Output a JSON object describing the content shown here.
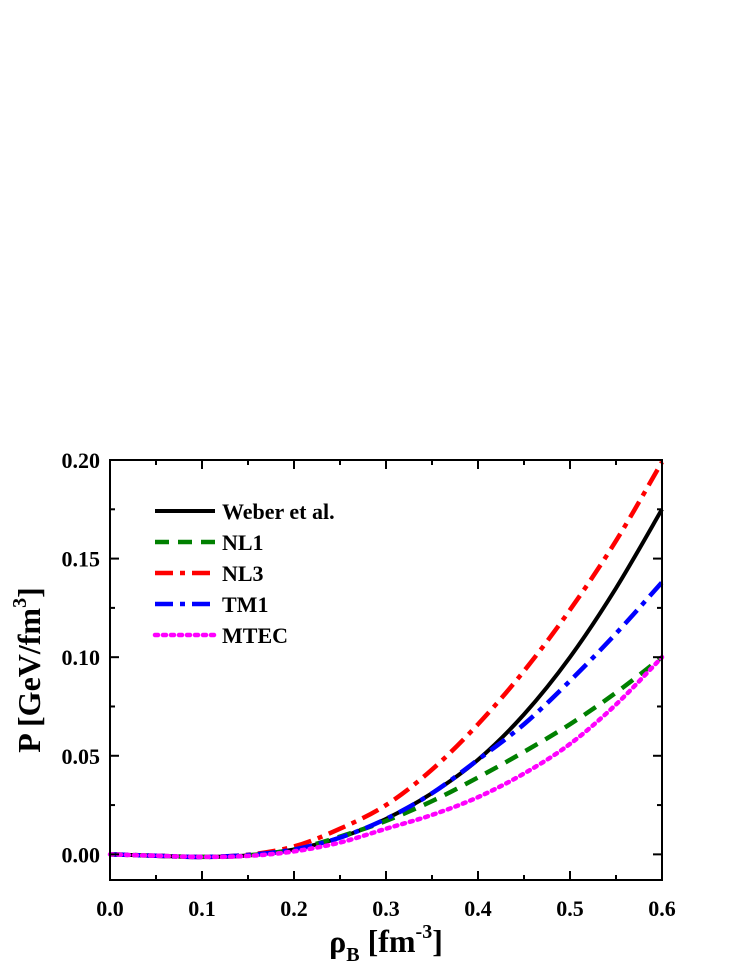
{
  "chart_data": {
    "type": "line",
    "xlabel": {
      "main": "ρ",
      "sub": "B",
      "unit_open": " [fm",
      "unit_exp": "-3",
      "unit_close": "]"
    },
    "ylabel": {
      "main": "P [GeV/fm",
      "exp": "3",
      "close": "]"
    },
    "xlim": [
      0.0,
      0.6
    ],
    "ylim": [
      -0.013,
      0.2
    ],
    "xticks": [
      "0.0",
      "0.1",
      "0.2",
      "0.3",
      "0.4",
      "0.5",
      "0.6"
    ],
    "yticks": [
      "0.00",
      "0.05",
      "0.10",
      "0.15",
      "0.20"
    ],
    "grid": false,
    "legend_position": "top-left",
    "series": [
      {
        "name": "Weber et al.",
        "color": "#000000",
        "style": "solid",
        "x": [
          0.0,
          0.05,
          0.1,
          0.15,
          0.2,
          0.25,
          0.3,
          0.35,
          0.4,
          0.45,
          0.5,
          0.55,
          0.6
        ],
        "y": [
          0.0,
          -0.0007,
          -0.0013,
          -0.0005,
          0.0025,
          0.0085,
          0.018,
          0.031,
          0.048,
          0.071,
          0.1,
          0.135,
          0.175
        ]
      },
      {
        "name": "NL1",
        "color": "#008000",
        "style": "dash",
        "x": [
          0.0,
          0.05,
          0.1,
          0.15,
          0.2,
          0.25,
          0.3,
          0.35,
          0.4,
          0.45,
          0.5,
          0.55,
          0.6
        ],
        "y": [
          0.0,
          -0.0007,
          -0.0013,
          -0.0005,
          0.0025,
          0.009,
          0.017,
          0.027,
          0.039,
          0.052,
          0.066,
          0.082,
          0.1
        ]
      },
      {
        "name": "NL3",
        "color": "#ff0000",
        "style": "dashdot",
        "x": [
          0.0,
          0.05,
          0.1,
          0.15,
          0.2,
          0.25,
          0.3,
          0.35,
          0.4,
          0.45,
          0.5,
          0.55,
          0.6
        ],
        "y": [
          0.0,
          -0.0007,
          -0.0013,
          -0.0002,
          0.004,
          0.013,
          0.025,
          0.043,
          0.066,
          0.093,
          0.124,
          0.159,
          0.199
        ]
      },
      {
        "name": "TM1",
        "color": "#0000ff",
        "style": "dashdot",
        "x": [
          0.0,
          0.05,
          0.1,
          0.15,
          0.2,
          0.25,
          0.3,
          0.35,
          0.4,
          0.45,
          0.5,
          0.55,
          0.6
        ],
        "y": [
          0.0,
          -0.0007,
          -0.0013,
          -0.0003,
          0.0025,
          0.0085,
          0.018,
          0.031,
          0.048,
          0.066,
          0.088,
          0.112,
          0.138
        ]
      },
      {
        "name": "MTEC",
        "color": "#ff00ff",
        "style": "dot",
        "x": [
          0.0,
          0.05,
          0.1,
          0.15,
          0.2,
          0.25,
          0.3,
          0.35,
          0.4,
          0.45,
          0.5,
          0.55,
          0.6
        ],
        "y": [
          0.0,
          -0.0007,
          -0.0013,
          -0.0008,
          0.0015,
          0.006,
          0.013,
          0.02,
          0.029,
          0.041,
          0.056,
          0.076,
          0.1
        ]
      }
    ]
  }
}
